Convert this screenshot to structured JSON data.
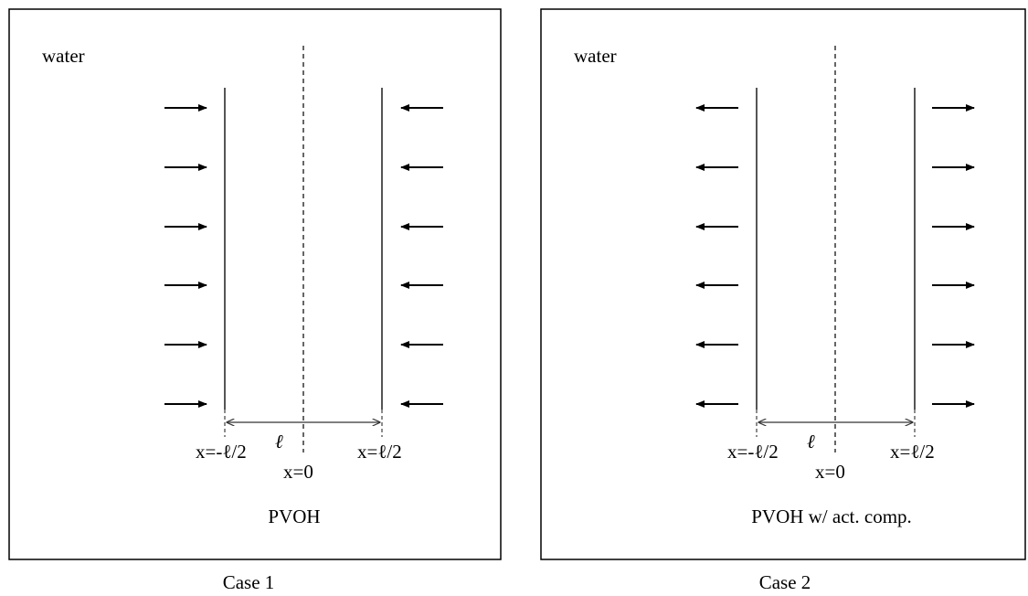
{
  "panels": [
    {
      "id": "case1",
      "caption": "Case 1",
      "water_label": "water",
      "material_label": "PVOH",
      "left_boundary_label": "x=-ℓ/2",
      "right_boundary_label": "x=ℓ/2",
      "center_label": "x=0",
      "thickness_label": "ℓ",
      "flow_direction": "inward",
      "arrow_rows": 6
    },
    {
      "id": "case2",
      "caption": "Case 2",
      "water_label": "water",
      "material_label": "PVOH w/ act. comp.",
      "left_boundary_label": "x=-ℓ/2",
      "right_boundary_label": "x=ℓ/2",
      "center_label": "x=0",
      "thickness_label": "ℓ",
      "flow_direction": "outward",
      "arrow_rows": 6
    }
  ],
  "colors": {
    "frame": "#000000",
    "membrane": "#555555",
    "arrow": "#000000",
    "dashed": "#666666"
  }
}
